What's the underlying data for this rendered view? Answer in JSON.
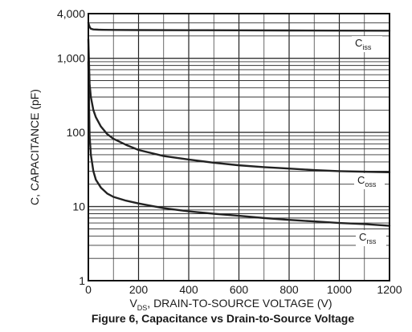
{
  "chart_data": {
    "type": "line",
    "title": "Figure 6, Capacitance vs Drain-to-Source Voltage",
    "xlabel": {
      "main": "V",
      "sub": "DS",
      "rest": ", DRAIN-TO-SOURCE VOLTAGE (V)"
    },
    "ylabel": "C, CAPACITANCE (pF)",
    "xlim": [
      0,
      1200
    ],
    "ylim": [
      1,
      4000
    ],
    "yscale": "log",
    "grid": true,
    "x_ticks": [
      {
        "value": 0,
        "label": "0"
      },
      {
        "value": 200,
        "label": "200"
      },
      {
        "value": 400,
        "label": "400"
      },
      {
        "value": 600,
        "label": "600"
      },
      {
        "value": 800,
        "label": "800"
      },
      {
        "value": 1000,
        "label": "1000"
      },
      {
        "value": 1200,
        "label": "1200"
      }
    ],
    "y_ticks": [
      {
        "value": 1,
        "label": "1"
      },
      {
        "value": 10,
        "label": "10"
      },
      {
        "value": 100,
        "label": "100"
      },
      {
        "value": 1000,
        "label": "1,000"
      },
      {
        "value": 4000,
        "label": "4,000"
      }
    ],
    "series": [
      {
        "name": "Ciss",
        "label_main": "C",
        "label_sub": "iss",
        "color": "#222222",
        "x": [
          0,
          5,
          10,
          20,
          40,
          60,
          100,
          200,
          400,
          600,
          800,
          1000,
          1200
        ],
        "y": [
          3000,
          2650,
          2500,
          2450,
          2430,
          2420,
          2410,
          2400,
          2390,
          2380,
          2370,
          2360,
          2350
        ]
      },
      {
        "name": "Coss",
        "label_main": "C",
        "label_sub": "oss",
        "color": "#222222",
        "x": [
          0,
          5,
          10,
          20,
          30,
          50,
          75,
          100,
          150,
          200,
          300,
          400,
          500,
          600,
          700,
          800,
          900,
          1000,
          1100,
          1200
        ],
        "y": [
          1800,
          450,
          300,
          200,
          160,
          120,
          95,
          82,
          68,
          58,
          48,
          43,
          39,
          36,
          34,
          32.5,
          31,
          30,
          29.5,
          29
        ]
      },
      {
        "name": "Crss",
        "label_main": "C",
        "label_sub": "rss",
        "color": "#222222",
        "x": [
          0,
          5,
          10,
          20,
          30,
          50,
          75,
          100,
          150,
          200,
          300,
          400,
          500,
          600,
          700,
          800,
          900,
          1000,
          1100,
          1200
        ],
        "y": [
          900,
          90,
          50,
          30,
          23,
          18,
          15,
          13.5,
          12,
          11,
          9.5,
          8.6,
          8,
          7.5,
          7,
          6.6,
          6.3,
          6,
          5.8,
          5.5
        ]
      }
    ]
  }
}
